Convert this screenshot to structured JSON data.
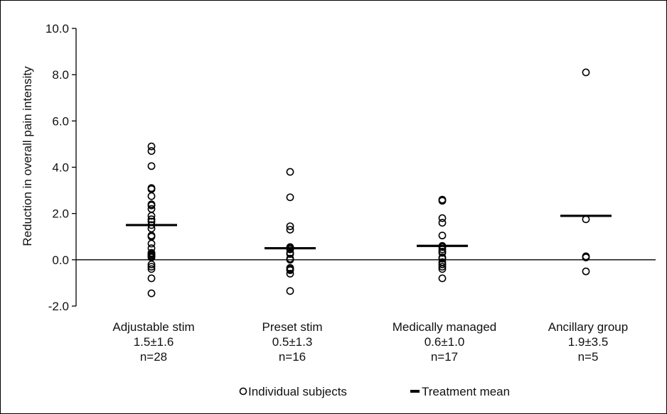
{
  "chart_data": {
    "type": "scatter",
    "ylabel": "Reduction in overall pain intensity",
    "ylim": [
      -2.0,
      10.0
    ],
    "yticks": [
      "-2.0",
      "0.0",
      "2.0",
      "4.0",
      "6.0",
      "8.0",
      "10.0"
    ],
    "ytick_values": [
      -2,
      0,
      2,
      4,
      6,
      8,
      10
    ],
    "reference_line_y": 0,
    "legend": {
      "placement": "bottom-center",
      "points_label": "Individual subjects",
      "mean_label": "Treatment mean"
    },
    "groups": [
      {
        "name": "Adjustable stim",
        "stat": "1.5±1.6",
        "n_label": "n=28",
        "mean": 1.5,
        "values": [
          4.9,
          4.7,
          4.05,
          3.1,
          3.05,
          2.75,
          2.4,
          2.35,
          2.2,
          1.9,
          1.75,
          1.65,
          1.5,
          1.35,
          1.05,
          1.0,
          0.7,
          0.5,
          0.3,
          0.25,
          0.2,
          0.15,
          0.1,
          -0.2,
          -0.3,
          -0.4,
          -0.8,
          -1.45
        ]
      },
      {
        "name": "Preset stim",
        "stat": "0.5±1.3",
        "n_label": "n=16",
        "mean": 0.5,
        "values": [
          3.8,
          2.7,
          1.45,
          1.3,
          0.55,
          0.5,
          0.45,
          0.3,
          0.25,
          0.05,
          -0.35,
          -0.4,
          -0.45,
          -0.6,
          -1.35,
          0.0
        ]
      },
      {
        "name": "Medically managed",
        "stat": "0.6±1.0",
        "n_label": "n=17",
        "mean": 0.6,
        "values": [
          2.6,
          2.55,
          1.8,
          1.6,
          1.05,
          0.6,
          0.55,
          0.45,
          0.35,
          0.3,
          0.1,
          0.05,
          -0.1,
          -0.2,
          -0.3,
          -0.4,
          -0.8
        ]
      },
      {
        "name": "Ancillary group",
        "stat": "1.9±3.5",
        "n_label": "n=5",
        "mean": 1.9,
        "values": [
          8.1,
          1.75,
          0.15,
          0.1,
          -0.5
        ]
      }
    ]
  },
  "colors": {
    "axis": "#000000",
    "points": "#000000",
    "mean": "#000000"
  }
}
